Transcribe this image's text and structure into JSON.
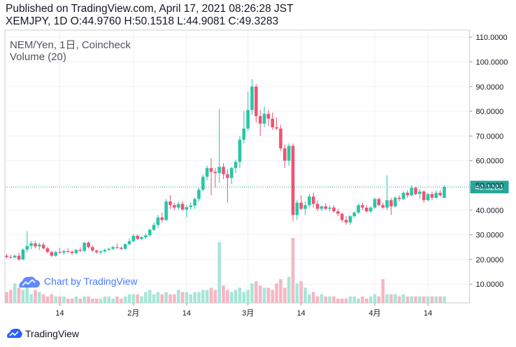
{
  "header": {
    "published": "Published on TradingView.com, April 17, 2021 08:26:28 JST",
    "ohlc": "XEMJPY, 1D O:44.9760 H:50.1518 L:44.9081 C:49.3283"
  },
  "legend": {
    "title": "NEM/Yen, 1日, Coincheck",
    "volume": "Volume (20)"
  },
  "watermark": "Chart by TradingView",
  "footer": "TradingView",
  "colors": {
    "up": "#26c6a6",
    "down": "#ef5373",
    "upVol": "#a7e6d7",
    "downVol": "#f7b6c3",
    "grid": "#eef0f3",
    "lastLine": "#26a69a"
  },
  "chart_data": {
    "type": "candlestick",
    "title": "NEM/Yen, 1日, Coincheck",
    "ylim": [
      0,
      112
    ],
    "y_ticks": [
      "110.0000",
      "100.0000",
      "90.0000",
      "80.0000",
      "70.0000",
      "60.0000",
      "50.0000",
      "40.0000",
      "30.0000",
      "20.0000",
      "10.0000"
    ],
    "x_ticks": [
      {
        "label": "14",
        "idx": 13
      },
      {
        "label": "2月",
        "idx": 31
      },
      {
        "label": "14",
        "idx": 44
      },
      {
        "label": "3月",
        "idx": 59
      },
      {
        "label": "14",
        "idx": 72
      },
      {
        "label": "4月",
        "idx": 90
      },
      {
        "label": "14",
        "idx": 103
      }
    ],
    "last_price": "49.3283",
    "last_value": 49.3283,
    "candles": [
      [
        21.5,
        22.3,
        20.4,
        21.0
      ],
      [
        21.0,
        21.9,
        20.3,
        20.8
      ],
      [
        20.8,
        22.0,
        20.5,
        21.5
      ],
      [
        21.5,
        22.8,
        19.5,
        20.0
      ],
      [
        20.0,
        24.5,
        19.8,
        24.0
      ],
      [
        24.0,
        31.5,
        23.0,
        25.5
      ],
      [
        25.5,
        27.5,
        24.2,
        26.5
      ],
      [
        26.5,
        27.5,
        24.5,
        25.3
      ],
      [
        25.3,
        26.8,
        23.8,
        26.0
      ],
      [
        26.0,
        26.9,
        24.0,
        24.5
      ],
      [
        24.5,
        25.2,
        22.5,
        23.0
      ],
      [
        23.0,
        23.6,
        21.0,
        21.5
      ],
      [
        21.5,
        23.5,
        21.0,
        23.0
      ],
      [
        23.0,
        24.5,
        22.3,
        22.8
      ],
      [
        22.8,
        24.0,
        21.8,
        23.4
      ],
      [
        23.4,
        24.5,
        22.5,
        23.1
      ],
      [
        23.1,
        23.8,
        22.0,
        22.6
      ],
      [
        22.6,
        24.2,
        22.0,
        23.9
      ],
      [
        23.9,
        25.0,
        23.0,
        23.5
      ],
      [
        23.5,
        27.0,
        23.0,
        26.8
      ],
      [
        26.8,
        27.3,
        24.5,
        25.0
      ],
      [
        25.0,
        25.6,
        23.2,
        23.6
      ],
      [
        23.6,
        24.0,
        22.2,
        22.9
      ],
      [
        22.9,
        23.8,
        22.0,
        23.3
      ],
      [
        23.3,
        24.4,
        22.7,
        23.9
      ],
      [
        23.9,
        24.8,
        23.2,
        24.3
      ],
      [
        24.3,
        25.6,
        23.8,
        25.0
      ],
      [
        25.0,
        26.5,
        24.3,
        24.7
      ],
      [
        24.7,
        25.3,
        23.9,
        24.3
      ],
      [
        24.3,
        26.5,
        24.0,
        26.2
      ],
      [
        26.2,
        28.5,
        25.7,
        27.4
      ],
      [
        27.4,
        30.2,
        27.0,
        29.6
      ],
      [
        29.6,
        30.2,
        27.8,
        28.3
      ],
      [
        28.3,
        29.5,
        27.7,
        29.0
      ],
      [
        29.0,
        30.6,
        28.2,
        29.8
      ],
      [
        29.8,
        32.5,
        29.2,
        32.0
      ],
      [
        32.0,
        35.0,
        31.5,
        34.0
      ],
      [
        34.0,
        38.0,
        32.8,
        37.0
      ],
      [
        37.0,
        39.0,
        35.0,
        36.0
      ],
      [
        36.0,
        44.5,
        35.5,
        43.5
      ],
      [
        43.5,
        46.0,
        40.5,
        42.0
      ],
      [
        42.0,
        43.0,
        40.0,
        41.0
      ],
      [
        41.0,
        43.5,
        40.0,
        42.5
      ],
      [
        42.5,
        43.6,
        39.8,
        40.2
      ],
      [
        40.2,
        42.0,
        37.0,
        41.2
      ],
      [
        41.2,
        43.0,
        40.3,
        41.8
      ],
      [
        41.8,
        45.0,
        40.5,
        44.5
      ],
      [
        44.5,
        49.0,
        43.5,
        48.2
      ],
      [
        48.2,
        54.5,
        47.5,
        53.5
      ],
      [
        53.5,
        58.0,
        52.0,
        57.0
      ],
      [
        57.0,
        61.0,
        46.0,
        55.5
      ],
      [
        55.5,
        57.0,
        49.0,
        55.0
      ],
      [
        55.0,
        81.0,
        51.0,
        57.5
      ],
      [
        57.5,
        59.0,
        52.5,
        54.5
      ],
      [
        54.5,
        56.5,
        43.0,
        53.0
      ],
      [
        53.0,
        57.5,
        50.5,
        57.0
      ],
      [
        57.0,
        60.5,
        55.0,
        59.5
      ],
      [
        59.5,
        70.0,
        57.0,
        68.5
      ],
      [
        68.5,
        80.0,
        67.0,
        73.0
      ],
      [
        73.0,
        88.0,
        72.0,
        80.5
      ],
      [
        80.5,
        93.0,
        78.5,
        90.0
      ],
      [
        90.0,
        91.0,
        75.5,
        78.0
      ],
      [
        78.0,
        80.5,
        70.0,
        75.0
      ],
      [
        75.0,
        82.0,
        73.5,
        79.0
      ],
      [
        79.0,
        80.5,
        74.0,
        77.0
      ],
      [
        77.0,
        79.5,
        72.5,
        73.5
      ],
      [
        73.5,
        77.5,
        72.5,
        73.0
      ],
      [
        73.0,
        74.5,
        64.0,
        65.0
      ],
      [
        65.0,
        66.5,
        57.0,
        60.0
      ],
      [
        60.0,
        67.0,
        58.0,
        66.0
      ],
      [
        66.0,
        67.0,
        35.5,
        38.0
      ],
      [
        38.0,
        44.0,
        36.0,
        43.0
      ],
      [
        43.0,
        46.0,
        40.0,
        40.5
      ],
      [
        40.5,
        43.5,
        38.0,
        42.0
      ],
      [
        42.0,
        46.5,
        41.0,
        45.5
      ],
      [
        45.5,
        47.0,
        41.0,
        42.5
      ],
      [
        42.5,
        44.0,
        39.5,
        40.5
      ],
      [
        40.5,
        42.0,
        39.5,
        41.5
      ],
      [
        41.5,
        42.8,
        40.0,
        40.5
      ],
      [
        40.5,
        41.8,
        39.5,
        41.0
      ],
      [
        41.0,
        42.0,
        39.0,
        39.5
      ],
      [
        39.5,
        40.5,
        37.5,
        38.5
      ],
      [
        38.5,
        39.0,
        35.0,
        36.0
      ],
      [
        36.0,
        37.5,
        34.0,
        35.0
      ],
      [
        35.0,
        38.0,
        34.0,
        37.5
      ],
      [
        37.5,
        39.5,
        37.0,
        39.0
      ],
      [
        39.0,
        42.5,
        38.5,
        42.0
      ],
      [
        42.0,
        43.0,
        40.0,
        41.0
      ],
      [
        41.0,
        42.0,
        39.0,
        39.5
      ],
      [
        39.5,
        41.5,
        39.0,
        41.0
      ],
      [
        41.0,
        45.0,
        40.5,
        44.5
      ],
      [
        44.5,
        45.0,
        41.5,
        42.0
      ],
      [
        42.0,
        43.0,
        40.5,
        41.0
      ],
      [
        41.0,
        54.0,
        40.0,
        44.0
      ],
      [
        44.0,
        45.0,
        38.0,
        41.5
      ],
      [
        41.5,
        45.5,
        41.0,
        45.0
      ],
      [
        45.0,
        46.0,
        43.5,
        44.5
      ],
      [
        44.5,
        47.5,
        44.0,
        47.0
      ],
      [
        47.0,
        48.0,
        45.0,
        46.0
      ],
      [
        46.0,
        50.0,
        45.5,
        49.0
      ],
      [
        49.0,
        49.5,
        46.0,
        46.5
      ],
      [
        46.5,
        48.5,
        44.5,
        47.5
      ],
      [
        47.5,
        48.0,
        43.0,
        44.0
      ],
      [
        44.0,
        47.0,
        43.5,
        46.5
      ],
      [
        46.5,
        47.5,
        44.0,
        45.0
      ],
      [
        45.0,
        48.0,
        44.5,
        47.0
      ],
      [
        47.0,
        48.0,
        45.5,
        46.0
      ],
      [
        44.976,
        50.1518,
        44.9081,
        49.3283
      ]
    ],
    "volume": [
      5,
      6,
      9,
      7,
      6,
      8,
      4,
      6,
      5,
      4,
      3,
      4,
      3,
      3,
      3,
      2,
      2,
      3,
      2,
      3,
      3,
      2,
      2,
      2,
      3,
      3,
      2,
      3,
      2,
      3,
      4,
      4,
      4,
      3,
      5,
      6,
      4,
      5,
      4,
      5,
      4,
      4,
      6,
      5,
      5,
      4,
      5,
      5,
      6,
      6,
      7,
      6,
      28,
      8,
      6,
      5,
      6,
      7,
      5,
      6,
      9,
      10,
      8,
      7,
      7,
      6,
      9,
      11,
      7,
      12,
      30,
      9,
      10,
      7,
      4,
      5,
      3,
      4,
      3,
      3,
      3,
      2,
      2,
      2,
      3,
      3,
      2,
      3,
      2,
      3,
      4,
      3,
      11,
      4,
      4,
      4,
      3,
      4,
      3,
      3,
      3,
      3,
      3,
      3,
      3,
      3,
      3,
      3
    ]
  }
}
